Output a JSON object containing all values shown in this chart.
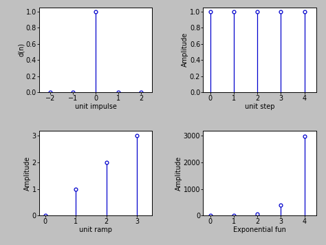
{
  "bg_color": "#c0c0c0",
  "subplot_bg": "#ffffff",
  "line_color": "#0000cc",
  "marker_color": "#0000cc",
  "impulse": {
    "n": [
      -2,
      -1,
      0,
      1,
      2
    ],
    "x": [
      0,
      0,
      1,
      0,
      0
    ],
    "xlabel": "unit impulse",
    "ylabel": "d(n)",
    "xlim": [
      -2.5,
      2.5
    ],
    "ylim": [
      0,
      1.05
    ],
    "xticks": [
      -2,
      -1,
      0,
      1,
      2
    ],
    "yticks": [
      0,
      0.2,
      0.4,
      0.6,
      0.8,
      1
    ]
  },
  "step": {
    "n": [
      0,
      1,
      2,
      3,
      4
    ],
    "x": [
      1,
      1,
      1,
      1,
      1
    ],
    "xlabel": "unit step",
    "ylabel": "Amplitude",
    "xlim": [
      -0.3,
      4.5
    ],
    "ylim": [
      0,
      1.05
    ],
    "xticks": [
      0,
      1,
      2,
      3,
      4
    ],
    "yticks": [
      0,
      0.2,
      0.4,
      0.6,
      0.8,
      1
    ]
  },
  "ramp": {
    "n": [
      0,
      1,
      2,
      3
    ],
    "x": [
      0,
      1,
      2,
      3
    ],
    "xlabel": "unit ramp",
    "ylabel": "Amplitude",
    "xlim": [
      -0.2,
      3.5
    ],
    "ylim": [
      0,
      3.2
    ],
    "xticks": [
      0,
      1,
      2,
      3
    ],
    "yticks": [
      0,
      1,
      2,
      3
    ]
  },
  "exp": {
    "n": [
      0,
      1,
      2,
      3,
      4
    ],
    "x": [
      1,
      7.389,
      54.598,
      403.429,
      2980.958
    ],
    "xlabel": "Exponential fun",
    "ylabel": "Amplitude",
    "xlim": [
      -0.3,
      4.5
    ],
    "ylim": [
      0,
      3200
    ],
    "xticks": [
      0,
      1,
      2,
      3,
      4
    ],
    "yticks": [
      0,
      1000,
      2000,
      3000
    ]
  },
  "title_fontsize": 7,
  "label_fontsize": 7,
  "tick_fontsize": 7
}
